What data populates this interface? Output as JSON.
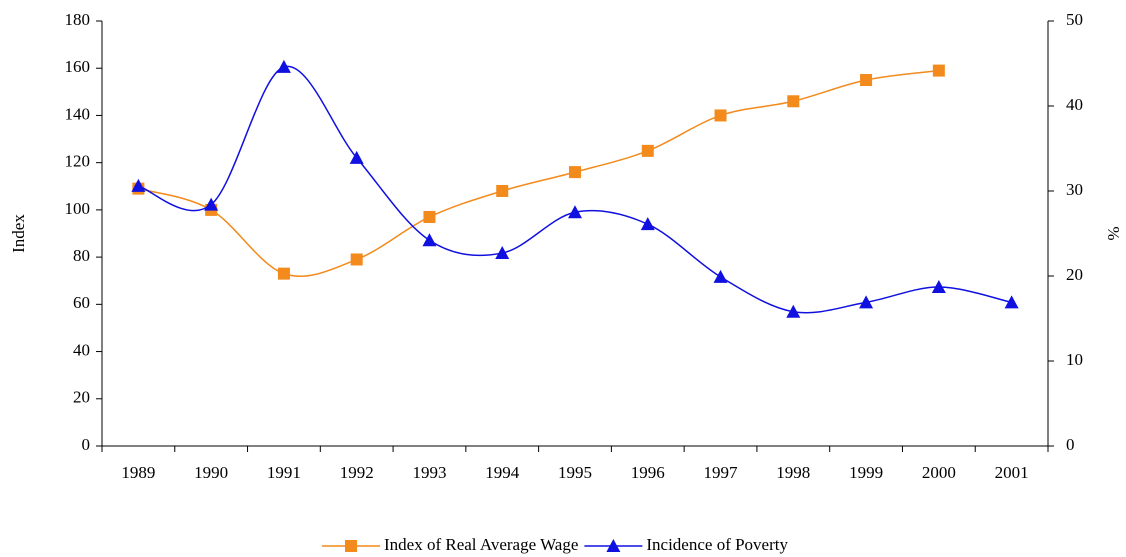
{
  "chart_data": {
    "type": "line",
    "categories": [
      "1989",
      "1990",
      "1991",
      "1992",
      "1993",
      "1994",
      "1995",
      "1996",
      "1997",
      "1998",
      "1999",
      "2000",
      "2001"
    ],
    "y_label": "Index",
    "y2_label": "%",
    "ylim": [
      0,
      180
    ],
    "yticks": [
      0,
      20,
      40,
      60,
      80,
      100,
      120,
      140,
      160,
      180
    ],
    "y2lim": [
      0,
      50
    ],
    "y2ticks": [
      0,
      10,
      20,
      30,
      40,
      50
    ],
    "smooth": true,
    "series": [
      {
        "name": "Index of Real Average Wage",
        "color": "#f28a1c",
        "marker": "square",
        "values": [
          109,
          100,
          73,
          79,
          97,
          108,
          116,
          125,
          140,
          146,
          155,
          159,
          null
        ]
      },
      {
        "name": "Incidence of Poverty",
        "color": "#1010e0",
        "marker": "triangle",
        "axis": "y2",
        "values": [
          30.6,
          28.4,
          44.6,
          33.9,
          24.2,
          22.7,
          27.5,
          26.1,
          19.9,
          15.8,
          16.9,
          18.7,
          16.9
        ]
      }
    ]
  }
}
